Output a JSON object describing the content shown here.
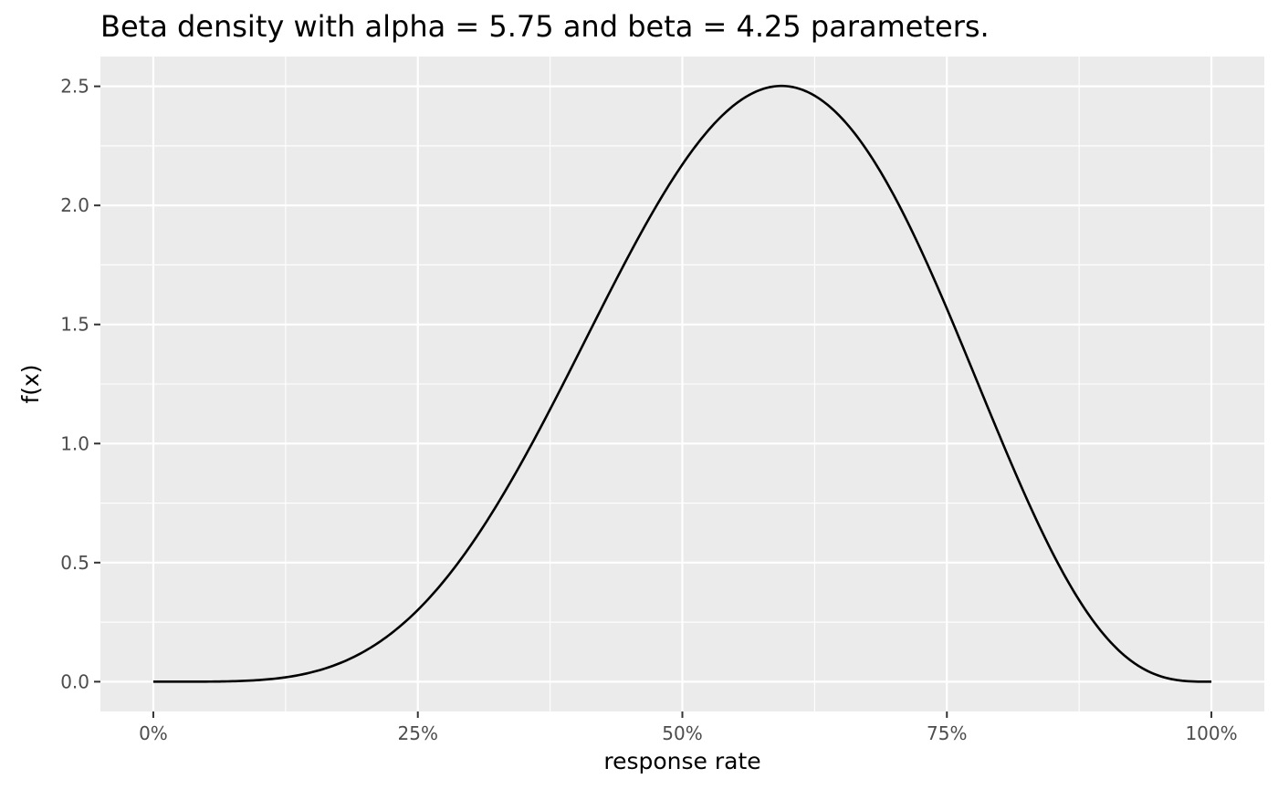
{
  "chart_data": {
    "type": "line",
    "title": "Beta density with alpha = 5.75 and beta = 4.25 parameters.",
    "xlabel": "response rate",
    "ylabel": "f(x)",
    "xlim": [
      -0.05,
      1.05
    ],
    "ylim": [
      -0.125,
      2.625
    ],
    "x_ticks": [
      {
        "value": 0,
        "label": "0%"
      },
      {
        "value": 0.25,
        "label": "25%"
      },
      {
        "value": 0.5,
        "label": "50%"
      },
      {
        "value": 0.75,
        "label": "75%"
      },
      {
        "value": 1,
        "label": "100%"
      }
    ],
    "y_ticks": [
      {
        "value": 0,
        "label": "0.0"
      },
      {
        "value": 0.5,
        "label": "0.5"
      },
      {
        "value": 1,
        "label": "1.0"
      },
      {
        "value": 1.5,
        "label": "1.5"
      },
      {
        "value": 2,
        "label": "2.0"
      },
      {
        "value": 2.5,
        "label": "2.5"
      }
    ],
    "grid": true,
    "background": "#ebebeb",
    "grid_color": "#ffffff",
    "line_color": "#000000",
    "series": [
      {
        "distribution": "beta",
        "alpha": 5.75,
        "beta": 4.25,
        "x": [
          0,
          0.05,
          0.1,
          0.15,
          0.2,
          0.25,
          0.3,
          0.35,
          0.4,
          0.45,
          0.5,
          0.55,
          0.6,
          0.65,
          0.7,
          0.75,
          0.8,
          0.85,
          0.9,
          0.95,
          1
        ],
        "y": [
          0,
          0.0005,
          0.0091,
          0.048,
          0.139,
          0.291,
          0.506,
          0.814,
          1.208,
          1.658,
          2.024,
          2.341,
          2.498,
          2.404,
          2.084,
          1.597,
          1.057,
          0.567,
          0.226,
          0.042,
          0
        ]
      }
    ]
  }
}
